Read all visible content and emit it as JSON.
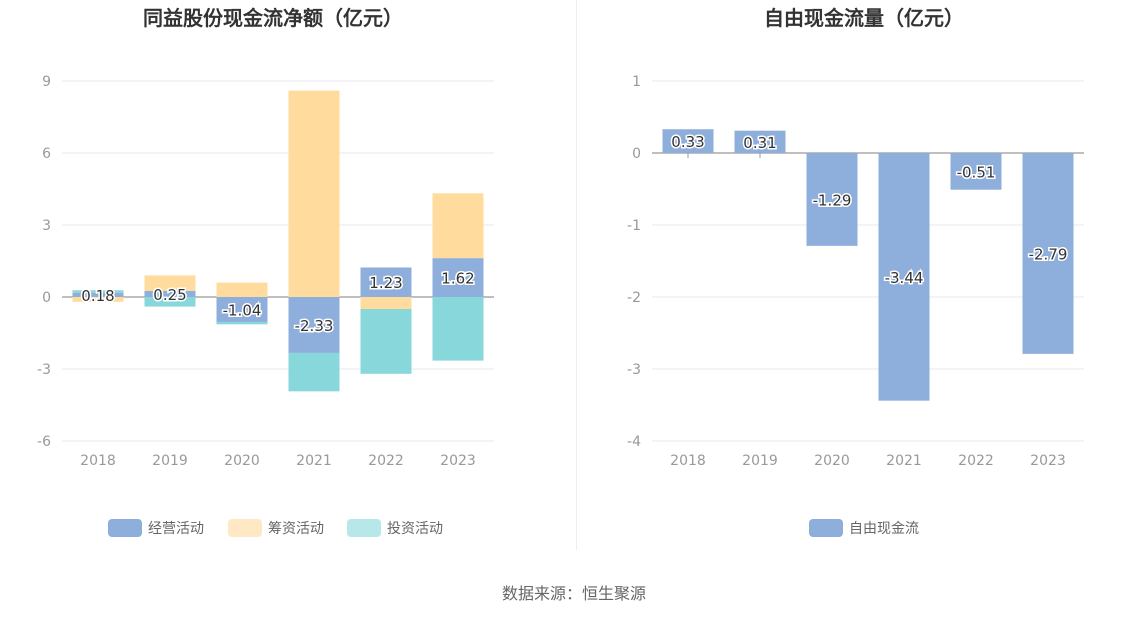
{
  "chart_data": [
    {
      "type": "bar",
      "stacked": true,
      "title": "同益股份现金流净额（亿元）",
      "categories": [
        "2018",
        "2019",
        "2020",
        "2021",
        "2022",
        "2023"
      ],
      "ylim": [
        -6,
        9
      ],
      "yticks": [
        9,
        6,
        3,
        0,
        -3,
        -6
      ],
      "grid": true,
      "legend_position": "bottom",
      "series": [
        {
          "name": "经营活动",
          "color": "#8eaedc",
          "values": [
            0.18,
            0.25,
            -1.04,
            -2.33,
            1.23,
            1.62
          ],
          "labels": [
            "0.18",
            "0.25",
            "-1.04",
            "-2.33",
            "1.23",
            "1.62"
          ]
        },
        {
          "name": "筹资活动",
          "color": "#ffdb9e",
          "values": [
            -0.2,
            0.65,
            0.6,
            8.6,
            -0.5,
            2.7
          ]
        },
        {
          "name": "投资活动",
          "color": "#87d7db",
          "values": [
            0.1,
            -0.4,
            -0.1,
            -1.6,
            -2.7,
            -2.65
          ]
        }
      ]
    },
    {
      "type": "bar",
      "title": "自由现金流量（亿元）",
      "categories": [
        "2018",
        "2019",
        "2020",
        "2021",
        "2022",
        "2023"
      ],
      "ylim": [
        -4,
        1
      ],
      "yticks": [
        1,
        0,
        -1,
        -2,
        -3,
        -4
      ],
      "grid": true,
      "legend_position": "bottom",
      "series": [
        {
          "name": "自由现金流",
          "color": "#8eaedc",
          "values": [
            0.33,
            0.31,
            -1.29,
            -3.44,
            -0.51,
            -2.79
          ],
          "labels": [
            "0.33",
            "0.31",
            "-1.29",
            "-3.44",
            "-0.51",
            "-2.79"
          ]
        }
      ]
    }
  ],
  "source": "数据来源：恒生聚源"
}
